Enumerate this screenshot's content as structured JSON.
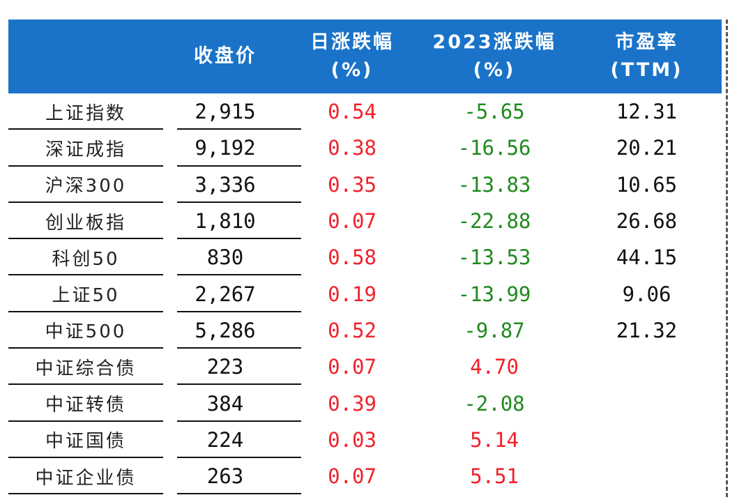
{
  "header": {
    "col_name": "",
    "col_close": "收盘价",
    "col_daily_line1": "日涨跌幅",
    "col_daily_line2": "(%)",
    "col_ytd_line1": "2023涨跌幅",
    "col_ytd_line2": "(%)",
    "col_pe_line1": "市盈率",
    "col_pe_line2": "(TTM)"
  },
  "rows": [
    {
      "name": "上证指数",
      "close": "2,915",
      "daily": "0.54",
      "ytd": "-5.65",
      "pe": "12.31"
    },
    {
      "name": "深证成指",
      "close": "9,192",
      "daily": "0.38",
      "ytd": "-16.56",
      "pe": "20.21"
    },
    {
      "name": "沪深300",
      "close": "3,336",
      "daily": "0.35",
      "ytd": "-13.83",
      "pe": "10.65"
    },
    {
      "name": "创业板指",
      "close": "1,810",
      "daily": "0.07",
      "ytd": "-22.88",
      "pe": "26.68"
    },
    {
      "name": "科创50",
      "close": "830",
      "daily": "0.58",
      "ytd": "-13.53",
      "pe": "44.15"
    },
    {
      "name": "上证50",
      "close": "2,267",
      "daily": "0.19",
      "ytd": "-13.99",
      "pe": "9.06"
    },
    {
      "name": "中证500",
      "close": "5,286",
      "daily": "0.52",
      "ytd": "-9.87",
      "pe": "21.32"
    },
    {
      "name": "中证综合债",
      "close": "223",
      "daily": "0.07",
      "ytd": "4.70",
      "pe": ""
    },
    {
      "name": "中证转债",
      "close": "384",
      "daily": "0.39",
      "ytd": "-2.08",
      "pe": ""
    },
    {
      "name": "中证国债",
      "close": "224",
      "daily": "0.03",
      "ytd": "5.14",
      "pe": ""
    },
    {
      "name": "中证企业债",
      "close": "263",
      "daily": "0.07",
      "ytd": "5.51",
      "pe": ""
    }
  ],
  "colors": {
    "header_bg": "#1a73c8",
    "positive": "#f0222c",
    "negative": "#1f8a1f"
  }
}
